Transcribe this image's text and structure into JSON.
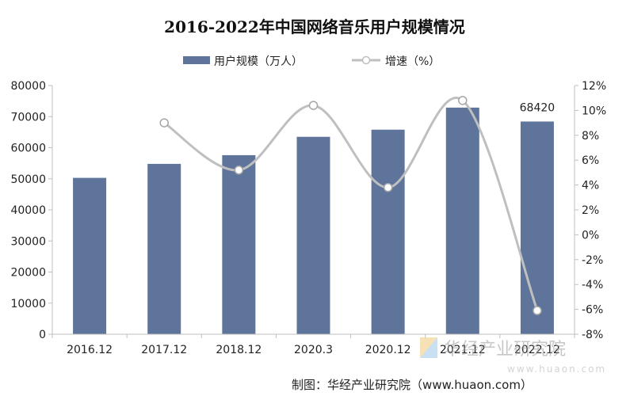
{
  "chart_data": {
    "type": "bar",
    "title": "2016-2022年中国网络音乐用户规模情况",
    "categories": [
      "2016.12",
      "2017.12",
      "2018.12",
      "2020.3",
      "2020.12",
      "2021.12",
      "2022.12"
    ],
    "series": [
      {
        "name": "用户规模（万人）",
        "type": "bar",
        "axis": "left",
        "values": [
          50300,
          54800,
          57600,
          63500,
          65800,
          72900,
          68420
        ],
        "data_labels": [
          null,
          null,
          null,
          null,
          null,
          null,
          "68420"
        ],
        "color": "#5f749b"
      },
      {
        "name": "增速（%）",
        "type": "line",
        "axis": "right",
        "smooth": true,
        "values": [
          null,
          9.0,
          5.2,
          10.4,
          3.8,
          10.8,
          -6.1
        ],
        "color": "#bfbfbf"
      }
    ],
    "ylim_left": [
      0,
      80000
    ],
    "yticks_left": [
      "0",
      "10000",
      "20000",
      "30000",
      "40000",
      "50000",
      "60000",
      "70000",
      "80000"
    ],
    "ylim_right": [
      -8,
      12
    ],
    "yticks_right": [
      "-8%",
      "-6%",
      "-4%",
      "-2%",
      "0%",
      "2%",
      "4%",
      "6%",
      "8%",
      "10%",
      "12%"
    ],
    "grid": false,
    "legend": "top"
  },
  "watermark": {
    "name": "华经产业研究院",
    "url": "www.huaon.com"
  },
  "footer": {
    "source": "制图：华经产业研究院（www.huaon.com）"
  }
}
